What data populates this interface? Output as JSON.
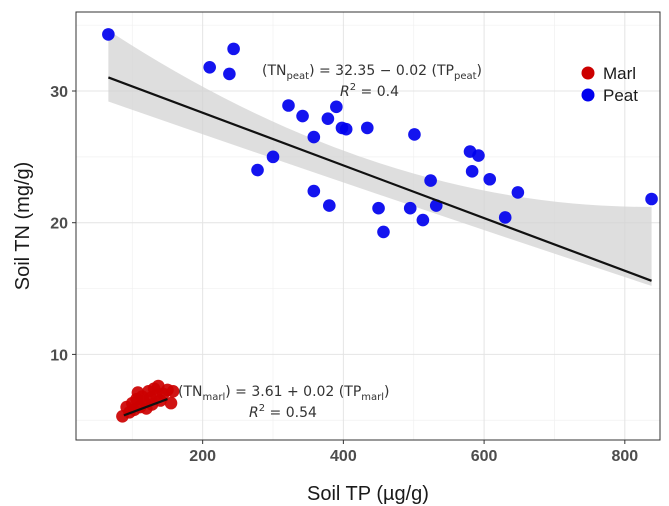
{
  "chart_data": {
    "type": "scatter",
    "xlabel": "Soil TP (µg/g)",
    "ylabel": "Soil TN (mg/g)",
    "xlim": [
      20,
      850
    ],
    "ylim": [
      3.5,
      36
    ],
    "xticks": [
      200,
      400,
      600,
      800
    ],
    "yticks": [
      10,
      20,
      30
    ],
    "x_tick_labels": [
      "200",
      "400",
      "600",
      "800"
    ],
    "y_tick_labels": [
      "10",
      "20",
      "30"
    ],
    "grid": true,
    "legend_position": "top-right",
    "series": [
      {
        "name": "Marl",
        "color": "#cc0000",
        "points": [
          [
            86,
            5.3
          ],
          [
            92,
            6.0
          ],
          [
            96,
            5.6
          ],
          [
            100,
            6.3
          ],
          [
            103,
            5.8
          ],
          [
            106,
            6.6
          ],
          [
            108,
            7.1
          ],
          [
            111,
            6.0
          ],
          [
            114,
            6.8
          ],
          [
            117,
            6.4
          ],
          [
            120,
            5.9
          ],
          [
            123,
            7.2
          ],
          [
            126,
            6.7
          ],
          [
            128,
            6.2
          ],
          [
            131,
            7.4
          ],
          [
            134,
            6.9
          ],
          [
            137,
            7.6
          ],
          [
            140,
            6.5
          ],
          [
            144,
            7.0
          ],
          [
            150,
            7.3
          ],
          [
            155,
            6.3
          ],
          [
            158,
            7.2
          ]
        ],
        "fit": {
          "intercept": 3.61,
          "slope": 0.02,
          "x_range": [
            88,
            150
          ]
        }
      },
      {
        "name": "Peat",
        "color": "#0000ee",
        "points": [
          [
            66,
            34.3
          ],
          [
            210,
            31.8
          ],
          [
            238,
            31.3
          ],
          [
            244,
            33.2
          ],
          [
            278,
            24.0
          ],
          [
            300,
            25.0
          ],
          [
            322,
            28.9
          ],
          [
            342,
            28.1
          ],
          [
            358,
            26.5
          ],
          [
            358,
            22.4
          ],
          [
            378,
            27.9
          ],
          [
            380,
            21.3
          ],
          [
            390,
            28.8
          ],
          [
            398,
            27.2
          ],
          [
            404,
            27.1
          ],
          [
            434,
            27.2
          ],
          [
            450,
            21.1
          ],
          [
            457,
            19.3
          ],
          [
            495,
            21.1
          ],
          [
            501,
            26.7
          ],
          [
            513,
            20.2
          ],
          [
            524,
            23.2
          ],
          [
            532,
            21.3
          ],
          [
            580,
            25.4
          ],
          [
            583,
            23.9
          ],
          [
            592,
            25.1
          ],
          [
            608,
            23.3
          ],
          [
            630,
            20.4
          ],
          [
            648,
            22.3
          ],
          [
            838,
            21.8
          ]
        ],
        "fit": {
          "intercept": 32.35,
          "slope": -0.02,
          "x_range": [
            66,
            838
          ]
        },
        "ci_band": {
          "x": [
            66,
            838
          ],
          "lower": [
            29.2,
            15.2
          ],
          "upper": [
            34.6,
            21.2
          ]
        }
      }
    ],
    "annotations": {
      "peat_equation": {
        "lhs_base": "TN",
        "lhs_sub": "peat",
        "mid": " = 32.35 − 0.02 ",
        "rhs_base": "TP",
        "rhs_sub": "peat"
      },
      "peat_r2": {
        "label": "R",
        "sup": "2",
        "value": " = 0.4"
      },
      "marl_equation": {
        "lhs_base": "TN",
        "lhs_sub": "marl",
        "mid": " = 3.61 + 0.02 ",
        "rhs_base": "TP",
        "rhs_sub": "marl"
      },
      "marl_r2": {
        "label": "R",
        "sup": "2",
        "value": " = 0.54"
      }
    }
  }
}
